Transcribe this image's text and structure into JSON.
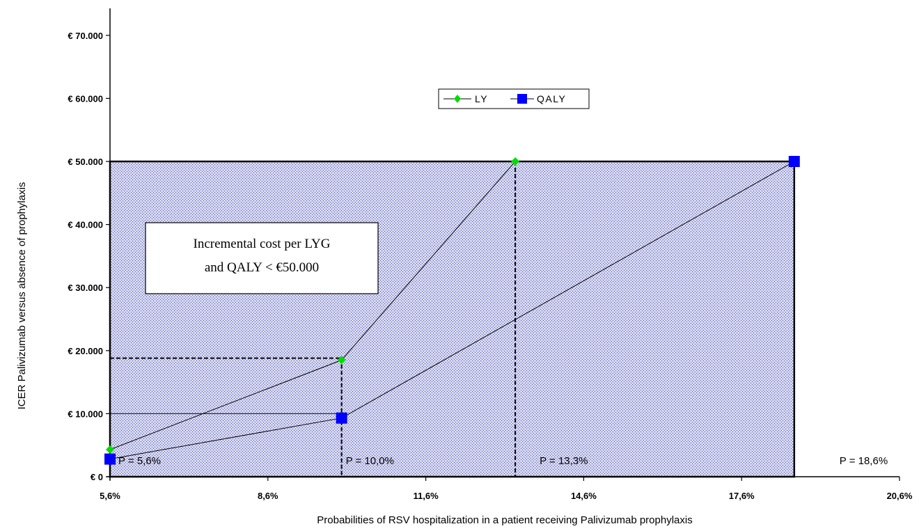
{
  "chart_data": {
    "type": "line",
    "title": "",
    "xlabel": "Probabilities of RSV hospitalization in a patient receiving Palivizumab prophylaxis",
    "ylabel": "ICER Palivizumab versus absence of prophylaxis",
    "xlim": [
      5.6,
      20.6
    ],
    "ylim": [
      0,
      75000
    ],
    "x_ticks": [
      5.6,
      8.6,
      11.6,
      14.6,
      17.6,
      20.6
    ],
    "x_tick_labels": [
      "5,6%",
      "8,6%",
      "11,6%",
      "14,6%",
      "17,6%",
      "20,6%"
    ],
    "y_ticks": [
      0,
      10000,
      20000,
      30000,
      40000,
      50000,
      60000,
      70000
    ],
    "y_tick_labels": [
      "€ 0",
      "€ 10.000",
      "€ 20.000",
      "€ 30.000",
      "€ 40.000",
      "€ 50.000",
      "€ 60.000",
      "€ 70.000"
    ],
    "series": [
      {
        "name": "LY",
        "color": "#00dd00",
        "marker": "diamond",
        "x": [
          5.6,
          10.0,
          13.3
        ],
        "values": [
          4300,
          18500,
          50000
        ]
      },
      {
        "name": "QALY",
        "color": "#0000ff",
        "marker": "square",
        "x": [
          5.6,
          10.0,
          18.6
        ],
        "values": [
          2800,
          9300,
          50000
        ]
      }
    ],
    "threshold": 50000,
    "shaded_region": {
      "x": [
        5.6,
        18.6
      ],
      "y": [
        0,
        50000
      ]
    },
    "reference_lines": [
      {
        "type": "vertical",
        "x": 10.0,
        "y_top": 18800
      },
      {
        "type": "vertical",
        "x": 13.3,
        "y_top": 50000
      },
      {
        "type": "horizontal",
        "y": 18800,
        "x_end": 10.0
      },
      {
        "type": "horizontal",
        "y": 10000,
        "x_end": 10.0
      }
    ],
    "point_labels": [
      {
        "text": "P = 5,6%",
        "x": 5.6
      },
      {
        "text": "P = 10,0%",
        "x": 10.0
      },
      {
        "text": "P = 13,3%",
        "x": 13.3
      },
      {
        "text": "P = 18,6%",
        "x": 18.6
      }
    ],
    "annotation": {
      "line1": "Incremental cost per LYG",
      "line2": "and QALY < €50.000"
    },
    "legend_position": "top-center",
    "grid": false
  }
}
